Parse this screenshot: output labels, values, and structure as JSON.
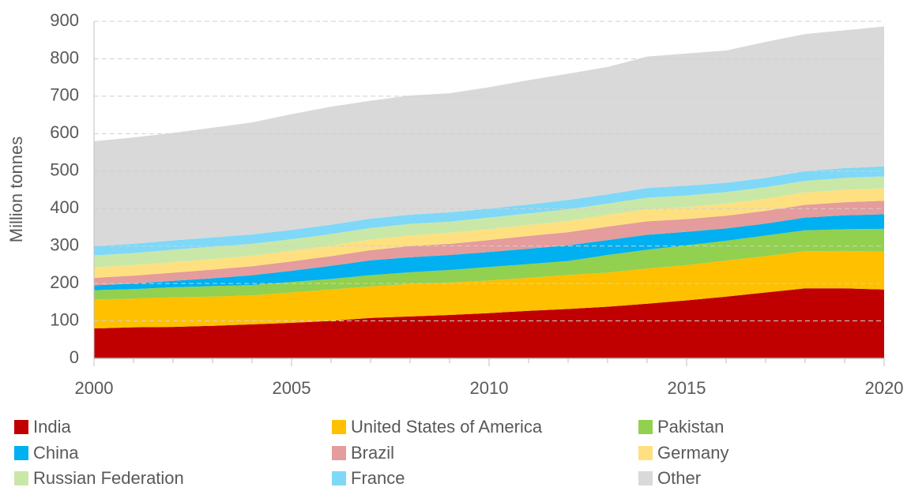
{
  "chart_data": {
    "type": "stacked-area",
    "y_label": "Million tonnes",
    "x": [
      2000,
      2001,
      2002,
      2003,
      2004,
      2005,
      2006,
      2007,
      2008,
      2009,
      2010,
      2011,
      2012,
      2013,
      2014,
      2015,
      2016,
      2017,
      2018,
      2019,
      2020
    ],
    "xlim": [
      2000,
      2020
    ],
    "xticks": [
      2000,
      2005,
      2010,
      2015,
      2020
    ],
    "ylim": [
      0,
      900
    ],
    "yticks": [
      0,
      100,
      200,
      300,
      400,
      500,
      600,
      700,
      800,
      900
    ],
    "grid": true,
    "legend": "bottom",
    "series": [
      {
        "name": "India",
        "color": "#c00000",
        "values": [
          80,
          83,
          84,
          87,
          91,
          95,
          100,
          108,
          112,
          116,
          121,
          127,
          132,
          138,
          146,
          155,
          165,
          176,
          187,
          187,
          184
        ]
      },
      {
        "name": "United States of America",
        "color": "#ffc000",
        "values": [
          77,
          77,
          79,
          78,
          77,
          81,
          84,
          84,
          87,
          86,
          87,
          88,
          91,
          91,
          94,
          94,
          96,
          97,
          99,
          100,
          101
        ]
      },
      {
        "name": "Pakistan",
        "color": "#92d050",
        "values": [
          25,
          25,
          27,
          28,
          28,
          28,
          28,
          30,
          31,
          34,
          36,
          37,
          37,
          47,
          50,
          53,
          53,
          55,
          56,
          58,
          61
        ]
      },
      {
        "name": "China",
        "color": "#00b0f0",
        "values": [
          13,
          15,
          17,
          21,
          26,
          30,
          35,
          40,
          40,
          40,
          40,
          41,
          42,
          40,
          40,
          36,
          33,
          32,
          34,
          37,
          39
        ]
      },
      {
        "name": "Brazil",
        "color": "#e59c9c",
        "values": [
          20,
          21,
          22,
          23,
          24,
          25,
          26,
          27,
          30,
          30,
          32,
          34,
          35,
          36,
          36,
          34,
          34,
          34,
          34,
          35,
          36
        ]
      },
      {
        "name": "Germany",
        "color": "#ffe080",
        "values": [
          28,
          28,
          28,
          28,
          28,
          28,
          28,
          28,
          28,
          29,
          29,
          29,
          30,
          31,
          32,
          32,
          32,
          32,
          33,
          33,
          33
        ]
      },
      {
        "name": "Russian Federation",
        "color": "#c9e8a8",
        "values": [
          32,
          32,
          33,
          33,
          32,
          31,
          31,
          31,
          31,
          30,
          31,
          31,
          31,
          30,
          31,
          31,
          31,
          31,
          31,
          32,
          32
        ]
      },
      {
        "name": "France",
        "color": "#7fd8f7",
        "values": [
          25,
          25,
          25,
          25,
          25,
          25,
          25,
          25,
          25,
          25,
          24,
          24,
          25,
          25,
          26,
          26,
          25,
          25,
          26,
          26,
          27
        ]
      },
      {
        "name": "Other",
        "color": "#d9d9d9",
        "values": [
          280,
          284,
          287,
          293,
          299,
          309,
          315,
          315,
          318,
          318,
          324,
          332,
          337,
          340,
          351,
          353,
          353,
          363,
          366,
          368,
          373
        ]
      }
    ]
  }
}
